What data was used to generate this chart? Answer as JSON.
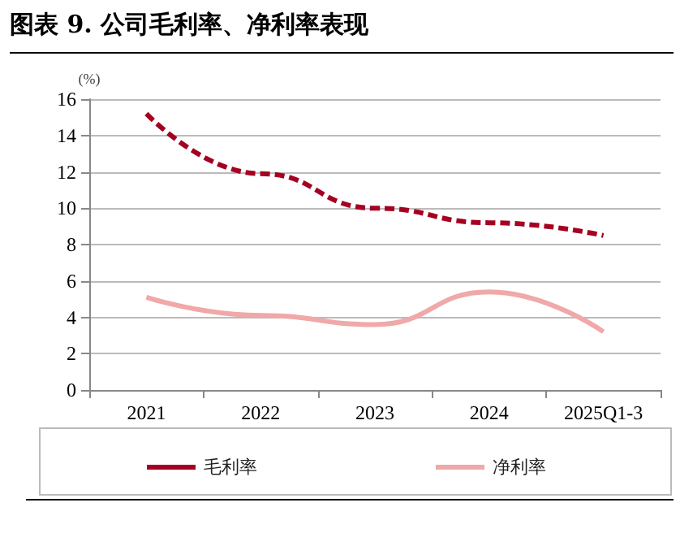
{
  "chart_data": {
    "type": "line",
    "title": "图表 9. 公司毛利率、净利率表现",
    "ylabel": "(%)",
    "categories": [
      "2021",
      "2022",
      "2023",
      "2024",
      "2025Q1-3"
    ],
    "series": [
      {
        "name": "毛利率",
        "color": "#a50021",
        "line_style": "dashed",
        "values": [
          15.2,
          11.9,
          10.0,
          9.2,
          8.5
        ]
      },
      {
        "name": "净利率",
        "color": "#f0a8a8",
        "line_style": "solid",
        "values": [
          5.1,
          4.1,
          3.6,
          5.4,
          3.2
        ]
      }
    ],
    "ylim": [
      0,
      16
    ],
    "yticks": [
      0,
      2,
      4,
      6,
      8,
      10,
      12,
      14,
      16
    ],
    "grid": "y",
    "legend": "bottom",
    "marker": "none"
  }
}
